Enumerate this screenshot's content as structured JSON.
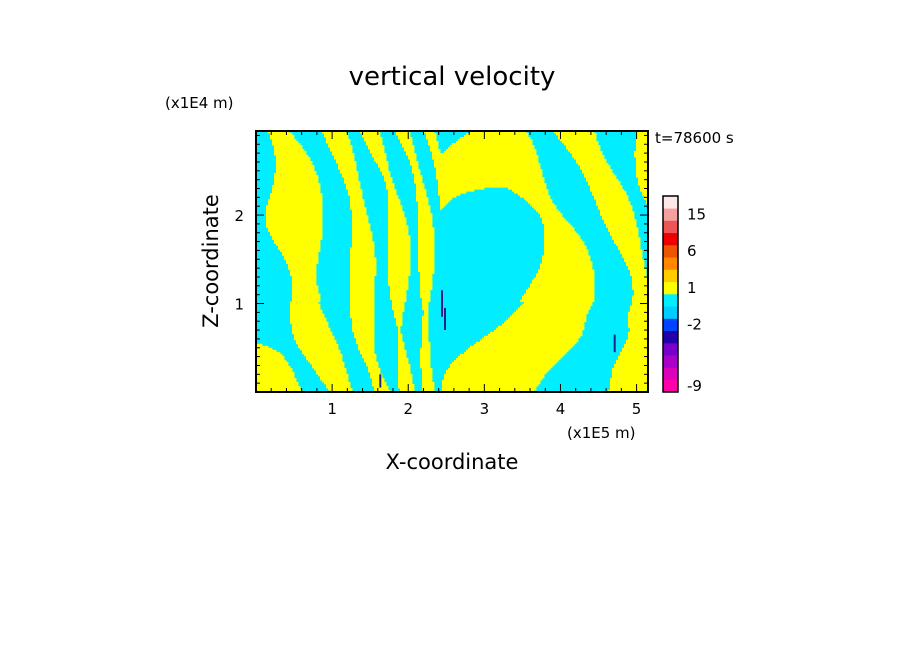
{
  "chart_data": {
    "type": "heatmap",
    "title": "vertical velocity",
    "xlabel": "X-coordinate",
    "ylabel": "Z-coordinate",
    "x_unit": "(x1E5 m)",
    "y_unit": "(x1E4 m)",
    "time_label": "t=78600 s",
    "xlim": [
      0,
      5.15
    ],
    "ylim": [
      0,
      2.95
    ],
    "x_ticks": [
      1,
      2,
      3,
      4,
      5
    ],
    "y_ticks": [
      1,
      2
    ],
    "field_colors": {
      "positive": "#ffff00",
      "negative": "#00eeff",
      "strong_negative": "#222288"
    },
    "colorbar": {
      "levels": [
        {
          "color": "#ff00aa",
          "label": "-9"
        },
        {
          "color": "#dd00bb",
          "label": ""
        },
        {
          "color": "#aa00cc",
          "label": ""
        },
        {
          "color": "#7700cc",
          "label": ""
        },
        {
          "color": "#2200aa",
          "label": ""
        },
        {
          "color": "#0044ff",
          "label": "-2"
        },
        {
          "color": "#00ccff",
          "label": ""
        },
        {
          "color": "#00eeff",
          "label": ""
        },
        {
          "color": "#ffff00",
          "label": "1"
        },
        {
          "color": "#ffcc00",
          "label": ""
        },
        {
          "color": "#ff8800",
          "label": ""
        },
        {
          "color": "#ee5500",
          "label": "6"
        },
        {
          "color": "#ee0000",
          "label": ""
        },
        {
          "color": "#ee5555",
          "label": ""
        },
        {
          "color": "#f5a0a0",
          "label": "15"
        },
        {
          "color": "#fde8e8",
          "label": ""
        }
      ]
    }
  }
}
